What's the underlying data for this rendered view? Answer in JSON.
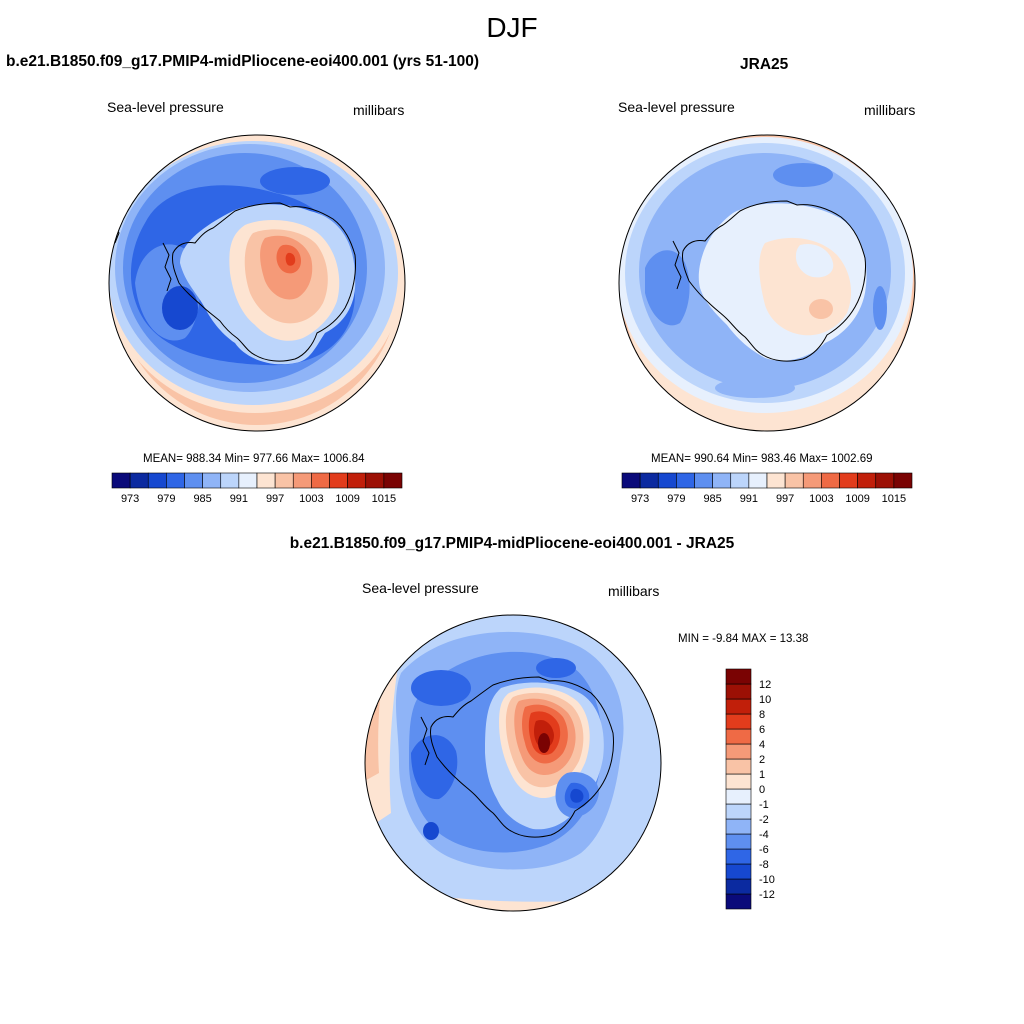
{
  "page": {
    "season": "DJF"
  },
  "panels": {
    "model": {
      "title": "b.e21.B1850.f09_g17.PMIP4-midPliocene-eoi400.001 (yrs 51-100)",
      "left_label": "Sea-level pressure",
      "right_label": "millibars",
      "stats": "MEAN= 988.34  Min= 977.66  Max= 1006.84"
    },
    "obs": {
      "title": "JRA25",
      "left_label": "Sea-level pressure",
      "right_label": "millibars",
      "stats": "MEAN= 990.64  Min= 983.46  Max= 1002.69"
    },
    "diff": {
      "title": "b.e21.B1850.f09_g17.PMIP4-midPliocene-eoi400.001 - JRA25",
      "left_label": "Sea-level pressure",
      "right_label": "millibars",
      "stats": "MIN =  -9.84 MAX =  13.38"
    }
  },
  "chart_data": [
    {
      "type": "heatmap",
      "projection": "south polar stereographic",
      "title": "b.e21.B1850.f09_g17.PMIP4-midPliocene-eoi400.001 (yrs 51-100)",
      "variable": "Sea-level pressure",
      "units": "millibars",
      "mean": 988.34,
      "min": 977.66,
      "max": 1006.84,
      "colorbar": {
        "orientation": "horizontal",
        "levels": [
          973,
          976,
          979,
          982,
          985,
          988,
          991,
          994,
          997,
          1000,
          1003,
          1006,
          1009,
          1012,
          1015
        ],
        "tick_labels": [
          "973",
          "979",
          "985",
          "991",
          "997",
          "1003",
          "1009",
          "1015"
        ],
        "colors": [
          "#0a0a7a",
          "#0b2aa0",
          "#1648d0",
          "#2f66e6",
          "#5e8ff0",
          "#8fb4f7",
          "#bcd5fb",
          "#e7f0fd",
          "#fde4d2",
          "#f9c3a6",
          "#f59a78",
          "#ef6a45",
          "#e23c1c",
          "#c11f0a",
          "#9c1005",
          "#7a0303"
        ]
      }
    },
    {
      "type": "heatmap",
      "projection": "south polar stereographic",
      "title": "JRA25",
      "variable": "Sea-level pressure",
      "units": "millibars",
      "mean": 990.64,
      "min": 983.46,
      "max": 1002.69,
      "colorbar": {
        "orientation": "horizontal",
        "levels": [
          973,
          976,
          979,
          982,
          985,
          988,
          991,
          994,
          997,
          1000,
          1003,
          1006,
          1009,
          1012,
          1015
        ],
        "tick_labels": [
          "973",
          "979",
          "985",
          "991",
          "997",
          "1003",
          "1009",
          "1015"
        ],
        "colors": [
          "#0a0a7a",
          "#0b2aa0",
          "#1648d0",
          "#2f66e6",
          "#5e8ff0",
          "#8fb4f7",
          "#bcd5fb",
          "#e7f0fd",
          "#fde4d2",
          "#f9c3a6",
          "#f59a78",
          "#ef6a45",
          "#e23c1c",
          "#c11f0a",
          "#9c1005",
          "#7a0303"
        ]
      }
    },
    {
      "type": "heatmap",
      "projection": "south polar stereographic",
      "title": "b.e21.B1850.f09_g17.PMIP4-midPliocene-eoi400.001 - JRA25",
      "variable": "Sea-level pressure",
      "units": "millibars",
      "min": -9.84,
      "max": 13.38,
      "colorbar": {
        "orientation": "vertical",
        "levels": [
          -12,
          -10,
          -8,
          -6,
          -4,
          -2,
          -1,
          0,
          1,
          2,
          4,
          6,
          8,
          10,
          12
        ],
        "tick_labels": [
          "-12",
          "-10",
          "-8",
          "-6",
          "-4",
          "-2",
          "-1",
          "0",
          "1",
          "2",
          "4",
          "6",
          "8",
          "10",
          "12"
        ],
        "colors": [
          "#0a0a7a",
          "#0b2aa0",
          "#1648d0",
          "#2f66e6",
          "#5e8ff0",
          "#8fb4f7",
          "#bcd5fb",
          "#e7f0fd",
          "#fde4d2",
          "#f9c3a6",
          "#f59a78",
          "#ef6a45",
          "#e23c1c",
          "#c11f0a",
          "#9c1005",
          "#7a0303"
        ]
      }
    }
  ]
}
